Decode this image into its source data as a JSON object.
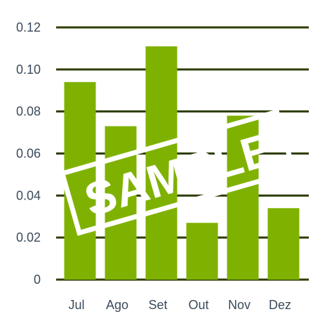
{
  "chart_data": {
    "type": "bar",
    "categories": [
      "Jul",
      "Ago",
      "Set",
      "Out",
      "Nov",
      "Dez"
    ],
    "values": [
      0.094,
      0.073,
      0.111,
      0.027,
      0.078,
      0.034
    ],
    "ylim": [
      0,
      0.12
    ],
    "yticks": [
      "0",
      "0.02",
      "0.04",
      "0.06",
      "0.08",
      "0.10",
      "0.12"
    ],
    "grid": true,
    "title": "",
    "xlabel": "",
    "ylabel": "",
    "colors": {
      "bar": "#7fb200",
      "grid": "#2e3d06",
      "tick_text": "#3b4a5a"
    }
  },
  "watermark": {
    "text": "SAMPLE"
  }
}
